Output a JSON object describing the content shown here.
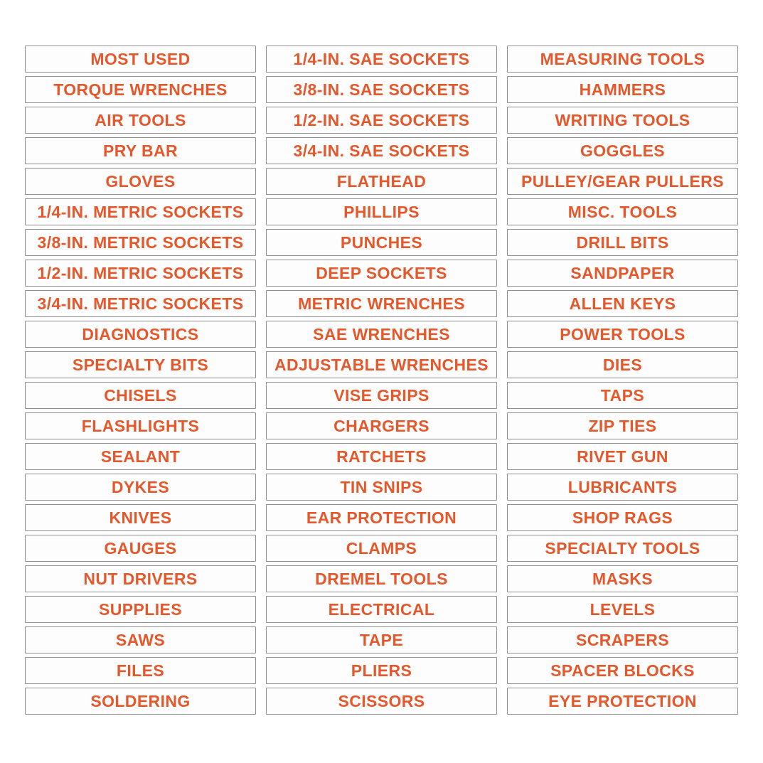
{
  "sheet": {
    "description": "Toolbox drawer organization sticker label sheet",
    "background_color": "#ffffff",
    "label_text_color": "#e4582b",
    "label_border_color": "#8f8f8f",
    "label_background_color": "#fdfdfd"
  },
  "columns": [
    {
      "labels": [
        "MOST USED",
        "TORQUE WRENCHES",
        "AIR TOOLS",
        "PRY BAR",
        "GLOVES",
        "1/4-IN. METRIC SOCKETS",
        "3/8-IN. METRIC SOCKETS",
        "1/2-IN. METRIC SOCKETS",
        "3/4-IN. METRIC SOCKETS",
        "DIAGNOSTICS",
        "SPECIALTY BITS",
        "CHISELS",
        "FLASHLIGHTS",
        "SEALANT",
        "DYKES",
        "KNIVES",
        "GAUGES",
        "NUT DRIVERS",
        "SUPPLIES",
        "SAWS",
        "FILES",
        "SOLDERING"
      ]
    },
    {
      "labels": [
        "1/4-IN. SAE SOCKETS",
        "3/8-IN. SAE SOCKETS",
        "1/2-IN. SAE SOCKETS",
        "3/4-IN. SAE SOCKETS",
        "FLATHEAD",
        "PHILLIPS",
        "PUNCHES",
        "DEEP SOCKETS",
        "METRIC WRENCHES",
        "SAE WRENCHES",
        "ADJUSTABLE WRENCHES",
        "VISE GRIPS",
        "CHARGERS",
        "RATCHETS",
        "TIN SNIPS",
        "EAR PROTECTION",
        "CLAMPS",
        "DREMEL TOOLS",
        "ELECTRICAL",
        "TAPE",
        "PLIERS",
        "SCISSORS"
      ]
    },
    {
      "labels": [
        "MEASURING TOOLS",
        "HAMMERS",
        "WRITING TOOLS",
        "GOGGLES",
        "PULLEY/GEAR PULLERS",
        "MISC. TOOLS",
        "DRILL BITS",
        "SANDPAPER",
        "ALLEN KEYS",
        "POWER TOOLS",
        "DIES",
        "TAPS",
        "ZIP TIES",
        "RIVET GUN",
        "LUBRICANTS",
        "SHOP RAGS",
        "SPECIALTY TOOLS",
        "MASKS",
        "LEVELS",
        "SCRAPERS",
        "SPACER BLOCKS",
        "EYE PROTECTION"
      ]
    }
  ]
}
